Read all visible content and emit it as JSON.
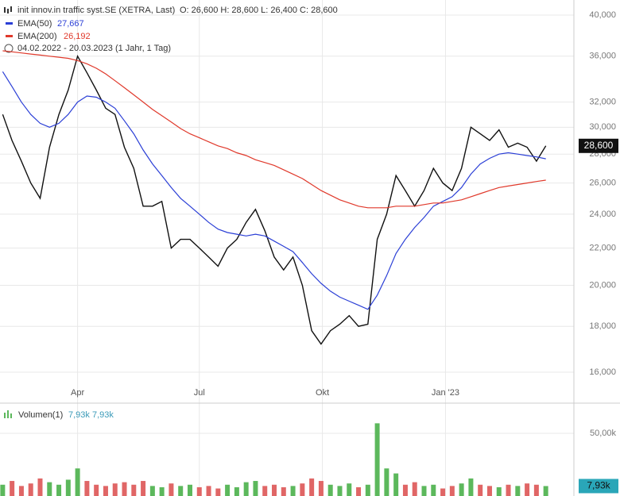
{
  "chart_data": [
    {
      "type": "line",
      "title": "init innov.in traffic syst.SE (XETRA, Last)",
      "ohlc_text": "O: 26,600  H: 28,600  L: 26,400  C: 28,600",
      "range_text": "04.02.2022 - 20.03.2023   (1 Jahr, 1 Tag)",
      "log_scale": true,
      "grid": true,
      "x": [
        "2022-02-04",
        "2022-02-11",
        "2022-02-18",
        "2022-02-25",
        "2022-03-04",
        "2022-03-11",
        "2022-03-18",
        "2022-03-25",
        "2022-04-01",
        "2022-04-08",
        "2022-04-15",
        "2022-04-22",
        "2022-04-29",
        "2022-05-06",
        "2022-05-13",
        "2022-05-20",
        "2022-05-27",
        "2022-06-03",
        "2022-06-10",
        "2022-06-17",
        "2022-06-24",
        "2022-07-01",
        "2022-07-08",
        "2022-07-15",
        "2022-07-22",
        "2022-07-29",
        "2022-08-05",
        "2022-08-12",
        "2022-08-19",
        "2022-08-26",
        "2022-09-02",
        "2022-09-09",
        "2022-09-16",
        "2022-09-23",
        "2022-09-30",
        "2022-10-07",
        "2022-10-14",
        "2022-10-21",
        "2022-10-28",
        "2022-11-04",
        "2022-11-11",
        "2022-11-18",
        "2022-11-25",
        "2022-12-02",
        "2022-12-09",
        "2022-12-16",
        "2022-12-23",
        "2022-12-30",
        "2023-01-06",
        "2023-01-13",
        "2023-01-20",
        "2023-01-27",
        "2023-02-03",
        "2023-02-10",
        "2023-02-17",
        "2023-02-24",
        "2023-03-03",
        "2023-03-10",
        "2023-03-17"
      ],
      "xlim": [
        "2022-02-02",
        "2023-04-07"
      ],
      "xticks": [
        {
          "value": "2022-04-01",
          "label": "Apr"
        },
        {
          "value": "2022-07-01",
          "label": "Jul"
        },
        {
          "value": "2022-10-01",
          "label": "Okt"
        },
        {
          "value": "2023-01-01",
          "label": "Jan '23"
        }
      ],
      "ylim": [
        14780,
        41580
      ],
      "yticks": [
        {
          "value": 16000,
          "label": "16,000"
        },
        {
          "value": 18000,
          "label": "18,000"
        },
        {
          "value": 20000,
          "label": "20,000"
        },
        {
          "value": 22000,
          "label": "22,000"
        },
        {
          "value": 24000,
          "label": "24,000"
        },
        {
          "value": 26000,
          "label": "26,000"
        },
        {
          "value": 28000,
          "label": "28,000"
        },
        {
          "value": 30000,
          "label": "30,000"
        },
        {
          "value": 32000,
          "label": "32,000"
        },
        {
          "value": 36000,
          "label": "36,000"
        },
        {
          "value": 40000,
          "label": "40,000"
        }
      ],
      "current": {
        "value": 28600,
        "label": "28,600"
      },
      "series": [
        {
          "name": "init innov.in traffic syst.SE (XETRA, Last)",
          "color": "#111111",
          "values": [
            31000,
            29000,
            27500,
            26000,
            25000,
            28500,
            31000,
            33000,
            36000,
            34500,
            33000,
            31500,
            31000,
            28500,
            27000,
            24500,
            24500,
            24800,
            22000,
            22500,
            22500,
            22000,
            21500,
            21000,
            22000,
            22500,
            23500,
            24300,
            23000,
            21500,
            20800,
            21500,
            20000,
            17800,
            17200,
            17800,
            18100,
            18500,
            18000,
            18100,
            22500,
            24000,
            26500,
            25500,
            24500,
            25500,
            27000,
            26000,
            25500,
            27000,
            30000,
            29500,
            29000,
            29800,
            28500,
            28800,
            28500,
            27500,
            28600
          ]
        },
        {
          "name": "EMA(50)",
          "color": "#2b3fd6",
          "last_label": "27,667",
          "values": [
            34600,
            33300,
            32000,
            31000,
            30300,
            30000,
            30300,
            31000,
            32000,
            32500,
            32400,
            32000,
            31500,
            30500,
            29500,
            28300,
            27300,
            26500,
            25700,
            25000,
            24500,
            24000,
            23500,
            23100,
            22900,
            22800,
            22700,
            22800,
            22700,
            22400,
            22100,
            21800,
            21200,
            20600,
            20100,
            19700,
            19400,
            19200,
            19000,
            18800,
            19500,
            20500,
            21700,
            22500,
            23200,
            23800,
            24500,
            24800,
            25100,
            25700,
            26600,
            27300,
            27700,
            28000,
            28100,
            28000,
            27900,
            27800,
            27667
          ]
        },
        {
          "name": "EMA(200)",
          "color": "#e0392b",
          "last_label": "26,192",
          "values": [
            36500,
            36400,
            36300,
            36200,
            36100,
            36000,
            35900,
            35800,
            35600,
            35300,
            34900,
            34400,
            33800,
            33200,
            32600,
            32000,
            31400,
            30900,
            30400,
            29900,
            29500,
            29200,
            28900,
            28600,
            28400,
            28100,
            27900,
            27600,
            27400,
            27200,
            26900,
            26600,
            26300,
            25900,
            25500,
            25200,
            24900,
            24700,
            24500,
            24400,
            24400,
            24400,
            24500,
            24500,
            24500,
            24600,
            24700,
            24700,
            24800,
            24900,
            25100,
            25300,
            25500,
            25700,
            25800,
            25900,
            26000,
            26100,
            26192
          ]
        }
      ]
    },
    {
      "type": "bar",
      "title": "Volumen(1)",
      "title_values": "7,93k  7,93k",
      "up_color": "#5cb85c",
      "down_color": "#e06666",
      "ylim": [
        0,
        72800
      ],
      "yticks": [
        {
          "value": 50000,
          "label": "50,00k"
        }
      ],
      "current": {
        "value": 7930,
        "label": "7,93k"
      },
      "values": [
        9000,
        12000,
        8000,
        10000,
        14000,
        11000,
        9000,
        13000,
        22000,
        12000,
        9000,
        8000,
        10000,
        11000,
        9000,
        12000,
        8000,
        7000,
        10000,
        8000,
        9000,
        7000,
        8000,
        6000,
        9000,
        7000,
        11000,
        12000,
        8000,
        9000,
        7000,
        8000,
        10000,
        14000,
        12000,
        9000,
        8000,
        10000,
        7000,
        9000,
        58000,
        22000,
        18000,
        9000,
        11000,
        8000,
        9000,
        6000,
        8000,
        10000,
        14000,
        9000,
        8000,
        7000,
        9000,
        8000,
        10000,
        9000,
        7930
      ]
    }
  ]
}
